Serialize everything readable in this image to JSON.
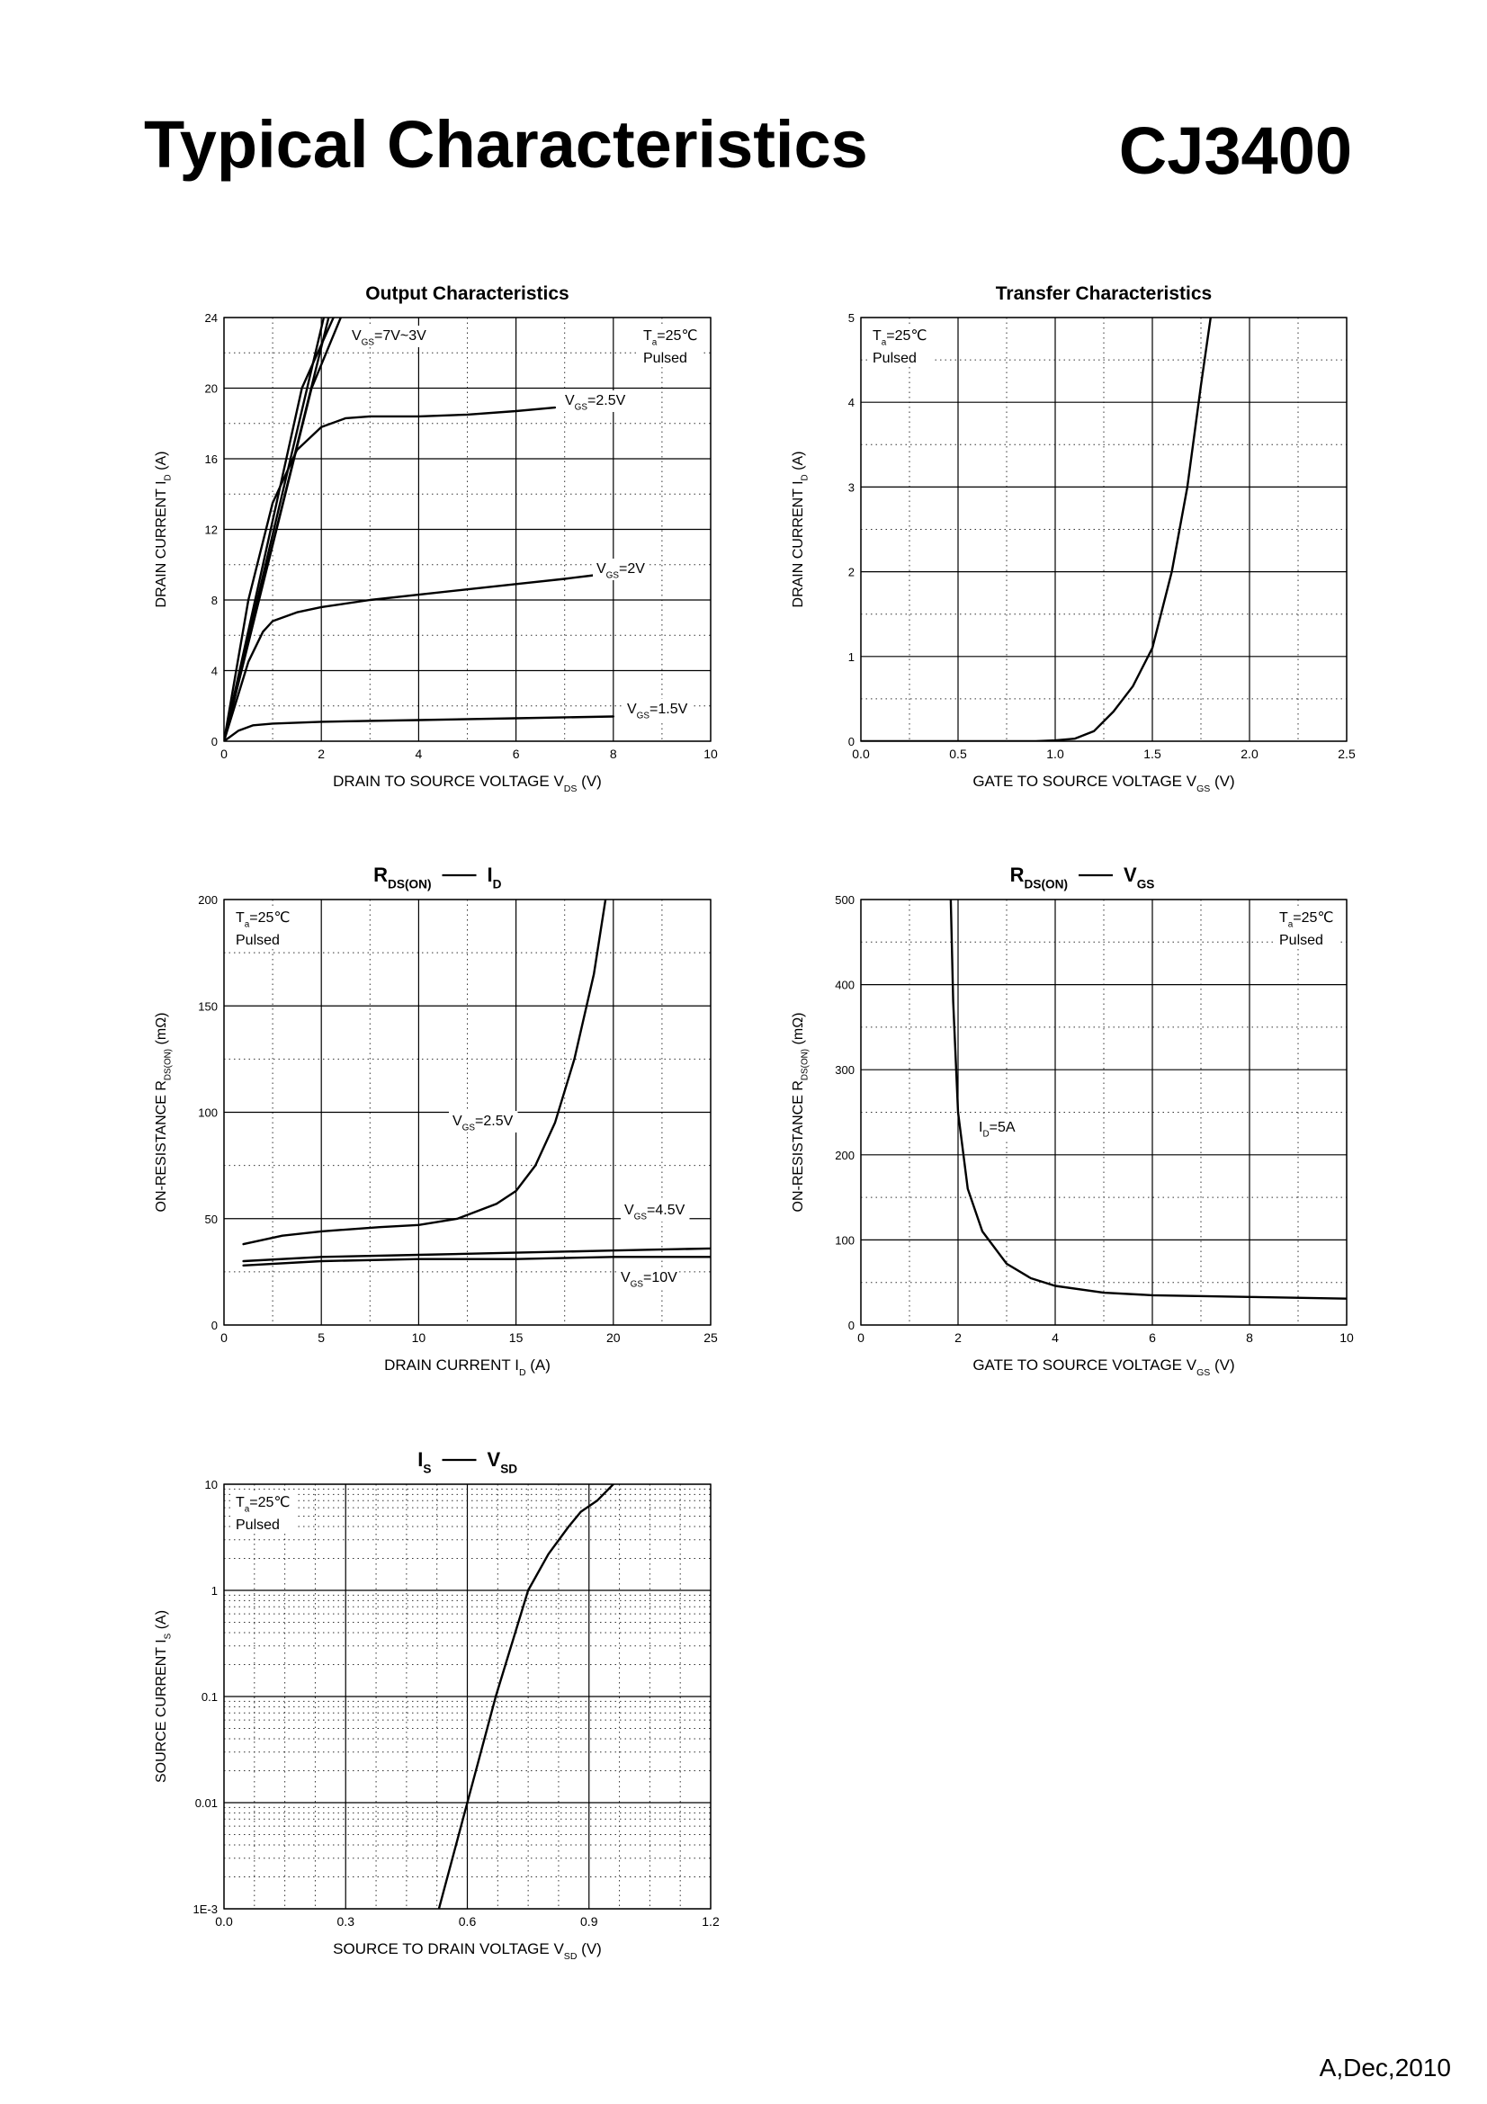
{
  "page": {
    "title": "Typical Characteristics",
    "part_number": "CJ3400",
    "revision": "A,Dec,2010"
  },
  "chart_data": [
    {
      "type": "line",
      "title": "Output Characteristics",
      "xlabel": "DRAIN TO SOURCE VOLTAGE V_DS (V)",
      "ylabel": "DRAIN CURRENT I_D (A)",
      "xlim": [
        0,
        10
      ],
      "ylim": [
        0,
        24
      ],
      "xticks": [
        0,
        2,
        4,
        6,
        8,
        10
      ],
      "yticks": [
        0,
        4,
        8,
        12,
        16,
        20,
        24
      ],
      "grid": true,
      "conditions": [
        "T_a=25℃",
        "Pulsed"
      ],
      "series": [
        {
          "name": "V_GS=7V~3V (a)",
          "points": [
            [
              0,
              0
            ],
            [
              2.05,
              24
            ]
          ]
        },
        {
          "name": "V_GS=7V~3V (b)",
          "points": [
            [
              0,
              0
            ],
            [
              2.15,
              24
            ]
          ]
        },
        {
          "name": "V_GS=7V~3V (c)",
          "points": [
            [
              0,
              0
            ],
            [
              1.6,
              20
            ],
            [
              2.25,
              24
            ]
          ]
        },
        {
          "name": "V_GS=7V~3V (d)",
          "points": [
            [
              0,
              0
            ],
            [
              1.8,
              20
            ],
            [
              2.4,
              24
            ]
          ]
        },
        {
          "name": "V_GS=2.5V",
          "points": [
            [
              0,
              0
            ],
            [
              0.5,
              8
            ],
            [
              1.0,
              13.5
            ],
            [
              1.5,
              16.5
            ],
            [
              2.0,
              17.8
            ],
            [
              2.5,
              18.3
            ],
            [
              3.0,
              18.4
            ],
            [
              4.0,
              18.4
            ],
            [
              5.0,
              18.5
            ],
            [
              6.0,
              18.7
            ],
            [
              6.8,
              18.9
            ]
          ]
        },
        {
          "name": "V_GS=2V",
          "points": [
            [
              0,
              0
            ],
            [
              0.5,
              4.5
            ],
            [
              0.8,
              6.2
            ],
            [
              1.0,
              6.8
            ],
            [
              1.5,
              7.3
            ],
            [
              2.0,
              7.6
            ],
            [
              3.0,
              8.0
            ],
            [
              4.0,
              8.3
            ],
            [
              5.0,
              8.6
            ],
            [
              6.0,
              8.9
            ],
            [
              7.0,
              9.2
            ],
            [
              7.6,
              9.4
            ]
          ]
        },
        {
          "name": "V_GS=1.5V",
          "points": [
            [
              0,
              0
            ],
            [
              0.3,
              0.6
            ],
            [
              0.6,
              0.9
            ],
            [
              1.0,
              1.0
            ],
            [
              2.0,
              1.1
            ],
            [
              4.0,
              1.2
            ],
            [
              6.0,
              1.3
            ],
            [
              8.0,
              1.4
            ]
          ]
        }
      ],
      "annotations": [
        "V_GS=7V~3V",
        "V_GS=2.5V",
        "V_GS=2V",
        "V_GS=1.5V"
      ]
    },
    {
      "type": "line",
      "title": "Transfer Characteristics",
      "xlabel": "GATE TO SOURCE VOLTAGE V_GS (V)",
      "ylabel": "DRAIN CURRENT I_D (A)",
      "xlim": [
        0.0,
        2.5
      ],
      "ylim": [
        0,
        5
      ],
      "xticks": [
        0.0,
        0.5,
        1.0,
        1.5,
        2.0,
        2.5
      ],
      "yticks": [
        0,
        1,
        2,
        3,
        4,
        5
      ],
      "grid": true,
      "conditions": [
        "T_a=25℃",
        "Pulsed"
      ],
      "series": [
        {
          "name": "I_D",
          "points": [
            [
              0.0,
              0
            ],
            [
              0.9,
              0
            ],
            [
              1.0,
              0.01
            ],
            [
              1.1,
              0.03
            ],
            [
              1.2,
              0.12
            ],
            [
              1.3,
              0.35
            ],
            [
              1.4,
              0.65
            ],
            [
              1.5,
              1.1
            ],
            [
              1.6,
              2.0
            ],
            [
              1.68,
              3.0
            ],
            [
              1.75,
              4.2
            ],
            [
              1.8,
              5.0
            ]
          ]
        }
      ]
    },
    {
      "type": "line",
      "title": "R_DS(ON) — I_D",
      "xlabel": "DRAIN CURRENT I_D (A)",
      "ylabel": "ON-RESISTANCE R_DS(ON) (mΩ)",
      "xlim": [
        0,
        25
      ],
      "ylim": [
        0,
        200
      ],
      "xticks": [
        0,
        5,
        10,
        15,
        20,
        25
      ],
      "yticks": [
        0,
        50,
        100,
        150,
        200
      ],
      "grid": true,
      "conditions": [
        "T_a=25℃",
        "Pulsed"
      ],
      "series": [
        {
          "name": "V_GS=2.5V",
          "points": [
            [
              1,
              38
            ],
            [
              3,
              42
            ],
            [
              5,
              44
            ],
            [
              8,
              46
            ],
            [
              10,
              47
            ],
            [
              12,
              50
            ],
            [
              14,
              57
            ],
            [
              15,
              63
            ],
            [
              16,
              75
            ],
            [
              17,
              95
            ],
            [
              18,
              125
            ],
            [
              19,
              165
            ],
            [
              19.6,
              200
            ]
          ]
        },
        {
          "name": "V_GS=4.5V",
          "points": [
            [
              1,
              30
            ],
            [
              5,
              32
            ],
            [
              10,
              33
            ],
            [
              15,
              34
            ],
            [
              20,
              35
            ],
            [
              25,
              36
            ]
          ]
        },
        {
          "name": "V_GS=10V",
          "points": [
            [
              1,
              28
            ],
            [
              5,
              30
            ],
            [
              10,
              31
            ],
            [
              15,
              31
            ],
            [
              20,
              32
            ],
            [
              25,
              32
            ]
          ]
        }
      ],
      "annotations": [
        "V_GS=2.5V",
        "V_GS=4.5V",
        "V_GS=10V"
      ]
    },
    {
      "type": "line",
      "title": "R_DS(ON) — V_GS",
      "xlabel": "GATE TO SOURCE VOLTAGE V_GS (V)",
      "ylabel": "ON-RESISTANCE R_DS(ON) (mΩ)",
      "xlim": [
        0,
        10
      ],
      "ylim": [
        0,
        500
      ],
      "xticks": [
        0,
        2,
        4,
        6,
        8,
        10
      ],
      "yticks": [
        0,
        100,
        200,
        300,
        400,
        500
      ],
      "grid": true,
      "conditions": [
        "T_a=25℃",
        "Pulsed"
      ],
      "series": [
        {
          "name": "I_D=5A",
          "points": [
            [
              1.85,
              500
            ],
            [
              1.9,
              380
            ],
            [
              2.0,
              250
            ],
            [
              2.2,
              160
            ],
            [
              2.5,
              110
            ],
            [
              3.0,
              72
            ],
            [
              3.5,
              55
            ],
            [
              4.0,
              46
            ],
            [
              5.0,
              38
            ],
            [
              6.0,
              35
            ],
            [
              8.0,
              33
            ],
            [
              10.0,
              31
            ]
          ]
        }
      ],
      "annotations": [
        "I_D=5A"
      ]
    },
    {
      "type": "line",
      "title": "I_S — V_SD",
      "xlabel": "SOURCE TO DRAIN VOLTAGE V_SD (V)",
      "ylabel": "SOURCE CURRENT I_S (A)",
      "xlim": [
        0.0,
        1.2
      ],
      "ylim": [
        0.001,
        10
      ],
      "yscale": "log",
      "xticks": [
        0.0,
        0.3,
        0.6,
        0.9,
        1.2
      ],
      "yticks": [
        0.001,
        0.01,
        0.1,
        1,
        10
      ],
      "ytick_labels": [
        "1E-3",
        "0.01",
        "0.1",
        "1",
        "10"
      ],
      "grid": true,
      "conditions": [
        "T_a=25℃",
        "Pulsed"
      ],
      "series": [
        {
          "name": "I_S",
          "points": [
            [
              0.53,
              0.001
            ],
            [
              0.6,
              0.01
            ],
            [
              0.67,
              0.1
            ],
            [
              0.75,
              1.0
            ],
            [
              0.8,
              2.2
            ],
            [
              0.85,
              4.0
            ],
            [
              0.88,
              5.5
            ],
            [
              0.92,
              7.0
            ],
            [
              0.96,
              10
            ]
          ]
        }
      ]
    }
  ]
}
